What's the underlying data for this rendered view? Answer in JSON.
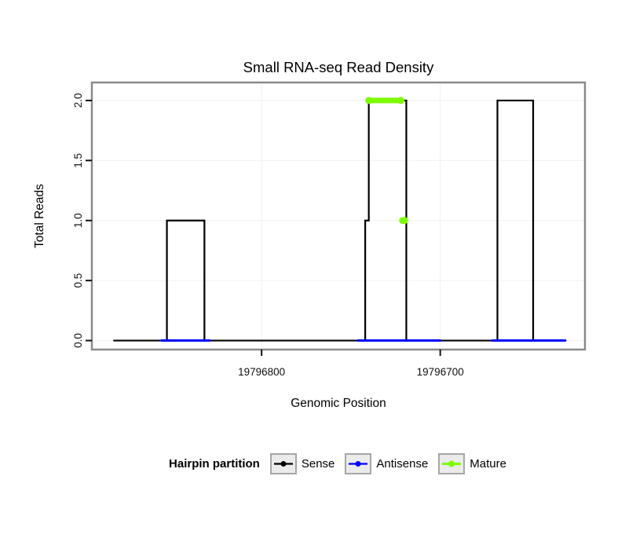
{
  "chart_data": {
    "type": "line",
    "title": "Small RNA-seq Read Density",
    "xlabel": "Genomic Position",
    "ylabel": "Total Reads",
    "xlim": [
      19796895,
      19796619
    ],
    "ylim": [
      -0.075,
      2.15
    ],
    "x_ticks": [
      19796800,
      19796700
    ],
    "x_tick_labels": [
      "19796800",
      "19796700"
    ],
    "y_ticks": [
      0.0,
      0.5,
      1.0,
      1.5,
      2.0
    ],
    "y_tick_labels": [
      "0.0",
      "0.5",
      "1.0",
      "1.5",
      "2.0"
    ],
    "grid": "faint",
    "legend_position": "bottom",
    "series": [
      {
        "name": "Sense",
        "color": "#000000",
        "width": 2.2,
        "points": [
          [
            19796883,
            0
          ],
          [
            19796853,
            0
          ],
          [
            19796853,
            1
          ],
          [
            19796832,
            1
          ],
          [
            19796832,
            0
          ],
          [
            19796742,
            0
          ],
          [
            19796742,
            1
          ],
          [
            19796740,
            1
          ],
          [
            19796740,
            2
          ],
          [
            19796719,
            2
          ],
          [
            19796719,
            0
          ],
          [
            19796668,
            0
          ],
          [
            19796668,
            2
          ],
          [
            19796648,
            2
          ],
          [
            19796648,
            0
          ],
          [
            19796630,
            0
          ]
        ]
      },
      {
        "name": "Antisense",
        "color": "#0000ff",
        "width": 3,
        "segments": [
          [
            19796856,
            19796829,
            0
          ],
          [
            19796746,
            19796700,
            0
          ],
          [
            19796671,
            19796630,
            0
          ]
        ]
      },
      {
        "name": "Mature",
        "color": "#7cfc00",
        "width": 7,
        "dots": true,
        "dot_r": 4.5,
        "segments": [
          [
            19796740,
            19796722,
            2
          ],
          [
            19796721,
            19796720,
            1
          ]
        ]
      }
    ],
    "legend": {
      "title": "Hairpin partition",
      "entries": [
        {
          "label": "Sense",
          "color": "#000000"
        },
        {
          "label": "Antisense",
          "color": "#0000ff"
        },
        {
          "label": "Mature",
          "color": "#7cfc00"
        }
      ]
    }
  }
}
